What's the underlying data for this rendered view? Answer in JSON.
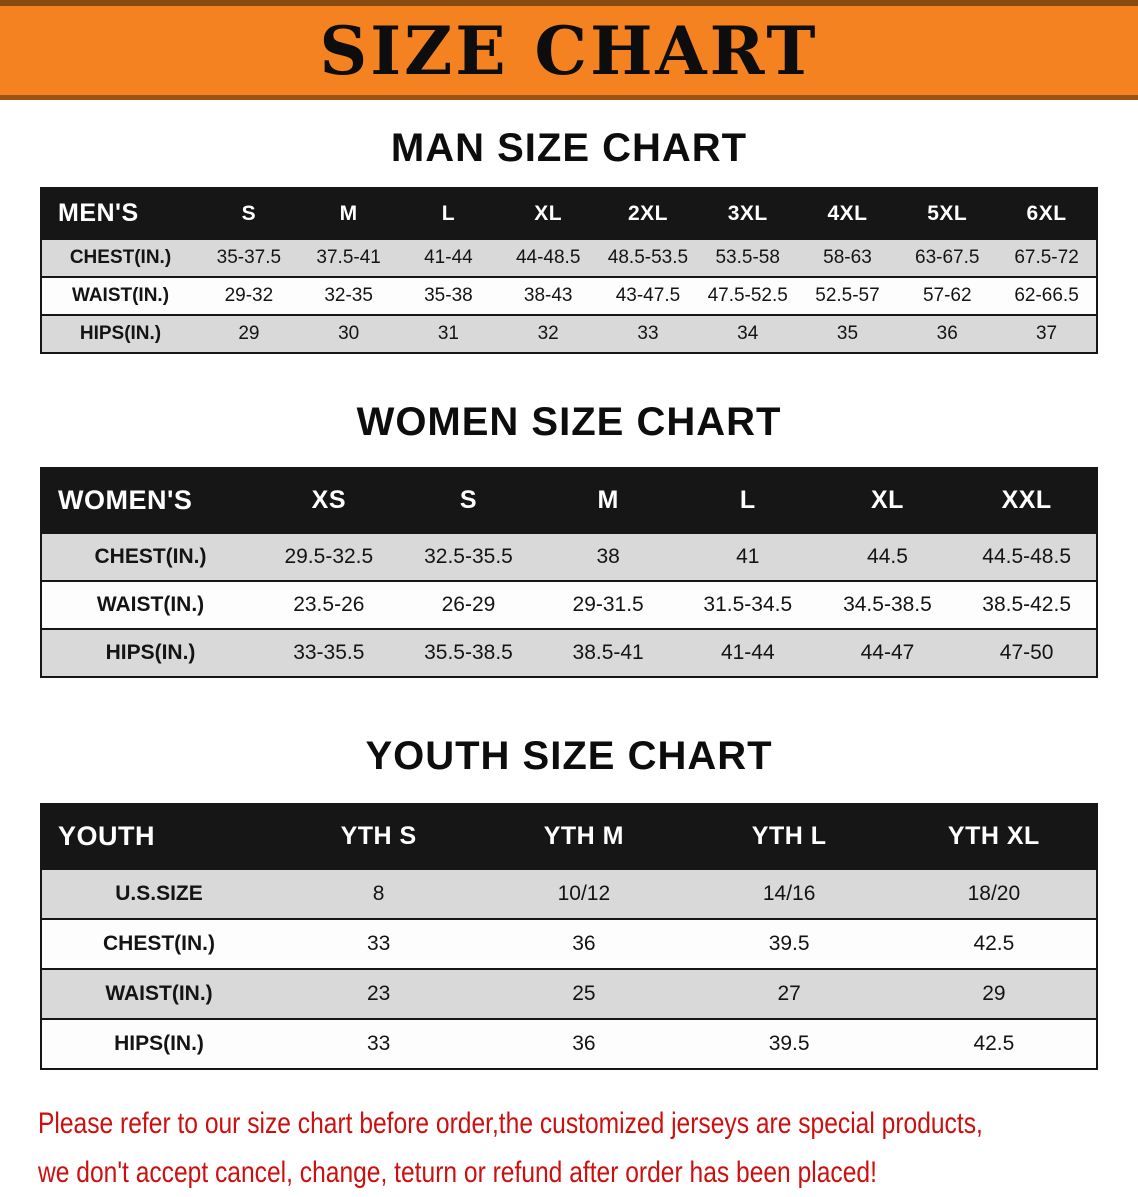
{
  "banner": {
    "title": "SIZE CHART"
  },
  "colors": {
    "banner_bg": "#F58220",
    "table_header_bg": "#161616",
    "row_alt_bg": "#d9d9d9",
    "disclaimer_text": "#cc1010"
  },
  "sections": [
    {
      "id": "men",
      "heading": "MAN SIZE CHART",
      "table": {
        "header": [
          "MEN'S",
          "S",
          "M",
          "L",
          "XL",
          "2XL",
          "3XL",
          "4XL",
          "5XL",
          "6XL"
        ],
        "rows": [
          {
            "key": "chest",
            "label": "CHEST(IN.)",
            "values": [
              "35-37.5",
              "37.5-41",
              "41-44",
              "44-48.5",
              "48.5-53.5",
              "53.5-58",
              "58-63",
              "63-67.5",
              "67.5-72"
            ]
          },
          {
            "key": "waist",
            "label": "WAIST(IN.)",
            "values": [
              "29-32",
              "32-35",
              "35-38",
              "38-43",
              "43-47.5",
              "47.5-52.5",
              "52.5-57",
              "57-62",
              "62-66.5"
            ]
          },
          {
            "key": "hips",
            "label": "HIPS(IN.)",
            "values": [
              "29",
              "30",
              "31",
              "32",
              "33",
              "34",
              "35",
              "36",
              "37"
            ]
          }
        ]
      }
    },
    {
      "id": "women",
      "heading": "WOMEN SIZE CHART",
      "table": {
        "header": [
          "WOMEN'S",
          "XS",
          "S",
          "M",
          "L",
          "XL",
          "XXL"
        ],
        "rows": [
          {
            "key": "chest",
            "label": "CHEST(IN.)",
            "values": [
              "29.5-32.5",
              "32.5-35.5",
              "38",
              "41",
              "44.5",
              "44.5-48.5"
            ]
          },
          {
            "key": "waist",
            "label": "WAIST(IN.)",
            "values": [
              "23.5-26",
              "26-29",
              "29-31.5",
              "31.5-34.5",
              "34.5-38.5",
              "38.5-42.5"
            ]
          },
          {
            "key": "hips",
            "label": "HIPS(IN.)",
            "values": [
              "33-35.5",
              "35.5-38.5",
              "38.5-41",
              "41-44",
              "44-47",
              "47-50"
            ]
          }
        ]
      }
    },
    {
      "id": "youth",
      "heading": "YOUTH SIZE CHART",
      "table": {
        "header": [
          "YOUTH",
          "YTH S",
          "YTH M",
          "YTH L",
          "YTH XL"
        ],
        "rows": [
          {
            "key": "us-size",
            "label": "U.S.SIZE",
            "values": [
              "8",
              "10/12",
              "14/16",
              "18/20"
            ]
          },
          {
            "key": "chest",
            "label": "CHEST(IN.)",
            "values": [
              "33",
              "36",
              "39.5",
              "42.5"
            ]
          },
          {
            "key": "waist",
            "label": "WAIST(IN.)",
            "values": [
              "23",
              "25",
              "27",
              "29"
            ]
          },
          {
            "key": "hips",
            "label": "HIPS(IN.)",
            "values": [
              "33",
              "36",
              "39.5",
              "42.5"
            ]
          }
        ]
      }
    }
  ],
  "disclaimer": {
    "lines": [
      "Please refer to our size chart before order,the customized jerseys are special products,",
      "we don't accept cancel, change, teturn or refund after order has been placed!"
    ]
  }
}
